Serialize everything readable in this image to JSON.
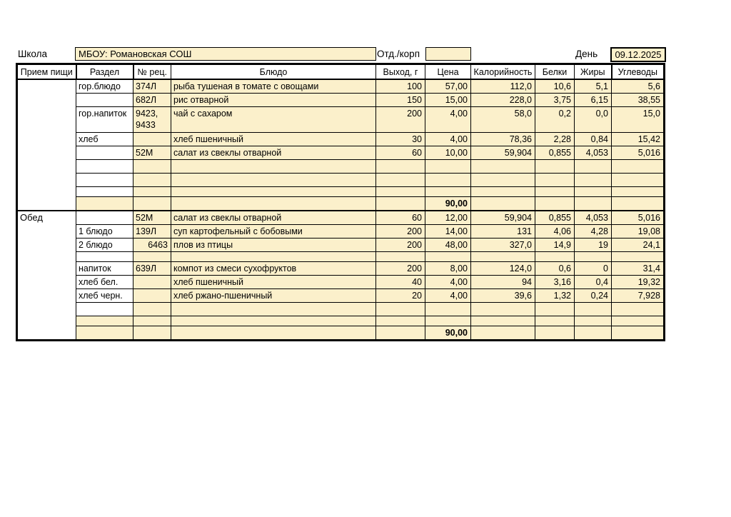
{
  "colors": {
    "cell_fill": "#FBF0CB",
    "border": "#000000"
  },
  "form": {
    "school_label": "Школа",
    "school_value": "МБОУ: Романовская СОШ",
    "dept_label": "Отд./корп",
    "dept_value": "",
    "day_label": "День",
    "day_value": "09.12.2025"
  },
  "table": {
    "headers": [
      "Прием пищи",
      "Раздел",
      "№ рец.",
      "Блюдо",
      "Выход, г",
      "Цена",
      "Калорийность",
      "Белки",
      "Жиры",
      "Углеводы"
    ],
    "sections": [
      {
        "meal": "",
        "total_price": "90,00",
        "rows": [
          {
            "razdel": "гор.блюдо",
            "rec": "374Л",
            "dish": "рыба тушеная в томате с овощами",
            "out": "100",
            "price": "57,00",
            "kcal": "112,0",
            "protein": "10,6",
            "fat": "5,1",
            "carbs": "5,6"
          },
          {
            "razdel": "",
            "rec": "682Л",
            "dish": "рис отварной",
            "out": "150",
            "price": "15,00",
            "kcal": "228,0",
            "protein": "3,75",
            "fat": "6,15",
            "carbs": "38,55"
          },
          {
            "razdel": "гор.напиток",
            "rec": "9423,\n9433",
            "dish": "чай с сахаром",
            "out": "200",
            "price": "4,00",
            "kcal": "58,0",
            "protein": "0,2",
            "fat": "0,0",
            "carbs": "15,0",
            "size": "tall"
          },
          {
            "razdel": "хлеб",
            "rec": "",
            "dish": "хлеб пшеничный",
            "out": "30",
            "price": "4,00",
            "kcal": "78,36",
            "protein": "2,28",
            "fat": "0,84",
            "carbs": "15,42"
          },
          {
            "razdel": "",
            "rec": "52М",
            "dish": "салат из свеклы отварной",
            "out": "60",
            "price": "10,00",
            "kcal": "59,904",
            "protein": "0,855",
            "fat": "4,053",
            "carbs": "5,016"
          },
          {
            "razdel": "",
            "rec": "",
            "dish": "",
            "out": "",
            "price": "",
            "kcal": "",
            "protein": "",
            "fat": "",
            "carbs": ""
          },
          {
            "razdel": "",
            "rec": "",
            "dish": "",
            "out": "",
            "price": "",
            "kcal": "",
            "protein": "",
            "fat": "",
            "carbs": ""
          },
          {
            "razdel": "",
            "rec": "",
            "dish": "",
            "out": "",
            "price": "",
            "kcal": "",
            "protein": "",
            "fat": "",
            "carbs": "",
            "size": "short"
          },
          {
            "razdel": "",
            "rec": "",
            "dish": "",
            "out": "",
            "price": "90,00",
            "kcal": "",
            "protein": "",
            "fat": "",
            "carbs": "",
            "total": true,
            "razdel_fill": "yellow"
          }
        ]
      },
      {
        "meal": "Обед",
        "total_price": "90,00",
        "rows": [
          {
            "razdel": "",
            "rec": "52М",
            "dish": "салат из свеклы отварной",
            "out": "60",
            "price": "12,00",
            "kcal": "59,904",
            "protein": "0,855",
            "fat": "4,053",
            "carbs": "5,016"
          },
          {
            "razdel": "1 блюдо",
            "rec": "139Л",
            "dish": "суп картофельный с бобовыми",
            "out": "200",
            "price": "14,00",
            "kcal": "131",
            "protein": "4,06",
            "fat": "4,28",
            "carbs": "19,08"
          },
          {
            "razdel": "2 блюдо",
            "rec": "6463",
            "rec_align": "right",
            "dish": "плов из птицы",
            "out": "200",
            "price": "48,00",
            "kcal": "327,0",
            "protein": "14,9",
            "fat": "19",
            "carbs": "24,1"
          },
          {
            "razdel": "",
            "rec": "",
            "dish": "",
            "out": "",
            "price": "",
            "kcal": "",
            "protein": "",
            "fat": "",
            "carbs": "",
            "size": "short"
          },
          {
            "razdel": "напиток",
            "rec": "639Л",
            "dish": "компот из смеси сухофруктов",
            "out": "200",
            "price": "8,00",
            "kcal": "124,0",
            "protein": "0,6",
            "fat": "0",
            "carbs": "31,4"
          },
          {
            "razdel": "хлеб бел.",
            "rec": "",
            "dish": "хлеб пшеничный",
            "out": "40",
            "price": "4,00",
            "kcal": "94",
            "protein": "3,16",
            "fat": "0,4",
            "carbs": "19,32"
          },
          {
            "razdel": "хлеб черн.",
            "rec": "",
            "dish": "хлеб ржано-пшеничный",
            "out": "20",
            "price": "4,00",
            "kcal": "39,6",
            "protein": "1,32",
            "fat": "0,24",
            "carbs": "7,928"
          },
          {
            "razdel": "",
            "rec": "",
            "dish": "",
            "out": "",
            "price": "",
            "kcal": "",
            "protein": "",
            "fat": "",
            "carbs": ""
          },
          {
            "razdel": "",
            "rec": "",
            "dish": "",
            "out": "",
            "price": "",
            "kcal": "",
            "protein": "",
            "fat": "",
            "carbs": "",
            "size": "short",
            "razdel_fill": "yellow"
          },
          {
            "razdel": "",
            "rec": "",
            "dish": "",
            "out": "",
            "price": "90,00",
            "kcal": "",
            "protein": "",
            "fat": "",
            "carbs": "",
            "total": true,
            "razdel_fill": "yellow"
          }
        ]
      }
    ]
  }
}
